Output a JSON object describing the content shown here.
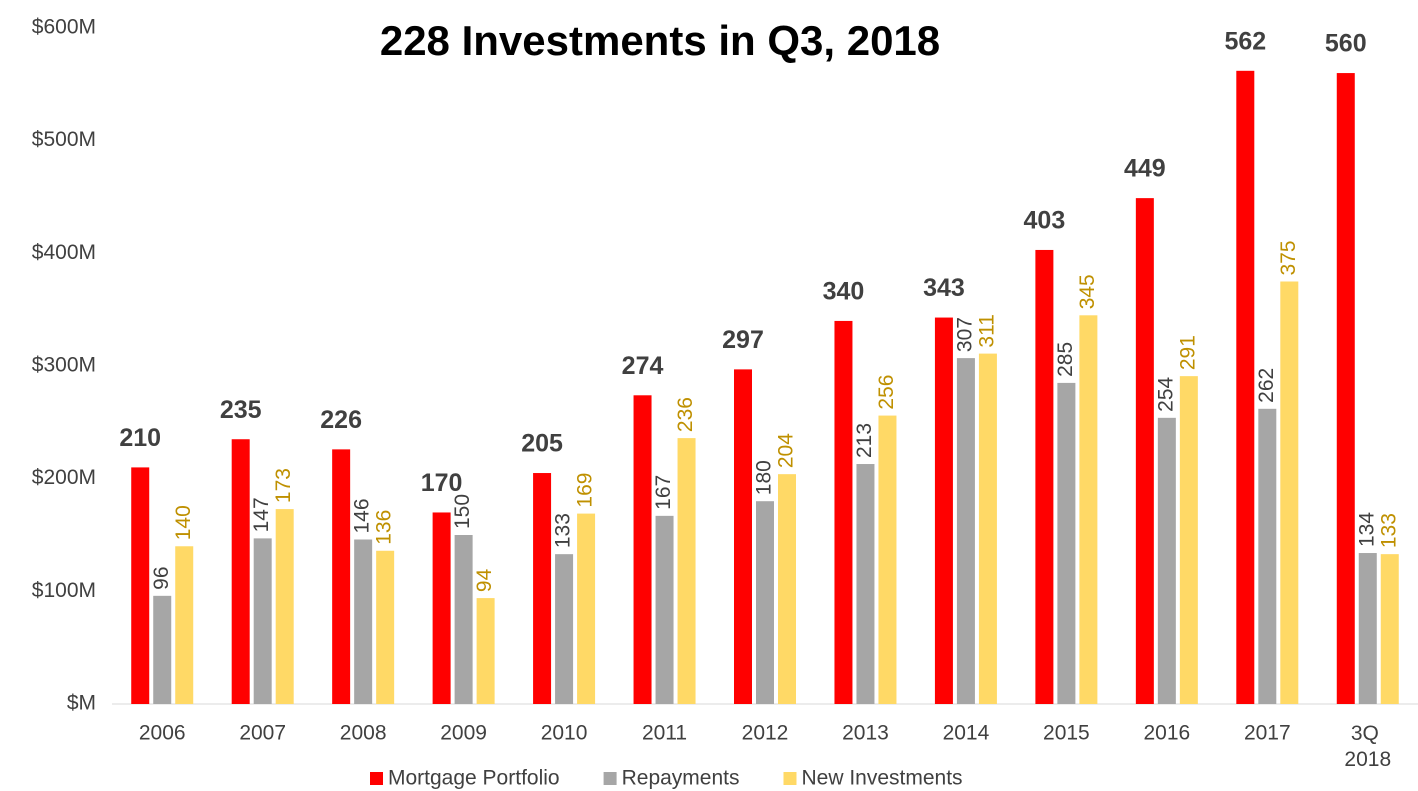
{
  "chart_data": {
    "type": "bar",
    "title": "228 Investments in Q3, 2018",
    "categories": [
      "2006",
      "2007",
      "2008",
      "2009",
      "2010",
      "2011",
      "2012",
      "2013",
      "2014",
      "2015",
      "2016",
      "2017",
      "3Q 2018"
    ],
    "series": [
      {
        "name": "Mortgage Portfolio",
        "color": "#ff0000",
        "label_color": "#404040",
        "values": [
          210,
          235,
          226,
          170,
          205,
          274,
          297,
          340,
          343,
          403,
          449,
          562,
          560
        ]
      },
      {
        "name": "Repayments",
        "color": "#a6a6a6",
        "label_color": "#404040",
        "values": [
          96,
          147,
          146,
          150,
          133,
          167,
          180,
          213,
          307,
          285,
          254,
          262,
          134
        ]
      },
      {
        "name": "New Investments",
        "color": "#ffd966",
        "label_color": "#bf9000",
        "values": [
          140,
          173,
          136,
          94,
          169,
          236,
          204,
          256,
          311,
          345,
          291,
          375,
          133
        ]
      }
    ],
    "ylim": [
      0,
      600
    ],
    "yticks": [
      {
        "value": 0,
        "label": "$M"
      },
      {
        "value": 100,
        "label": "$100M"
      },
      {
        "value": 200,
        "label": "$200M"
      },
      {
        "value": 300,
        "label": "$300M"
      },
      {
        "value": 400,
        "label": "$400M"
      },
      {
        "value": 500,
        "label": "$500M"
      },
      {
        "value": 600,
        "label": "$600M"
      }
    ],
    "legend": "bottom"
  }
}
